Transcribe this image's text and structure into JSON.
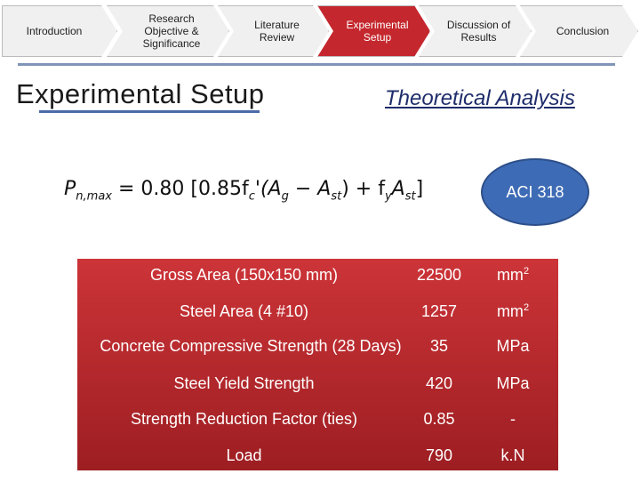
{
  "nav": {
    "items": [
      {
        "label": "Introduction",
        "active": false
      },
      {
        "label": "Research Objective & Significance",
        "active": false
      },
      {
        "label": "Literature Review",
        "active": false
      },
      {
        "label": "Experimental Setup",
        "active": true
      },
      {
        "label": "Discussion of Results",
        "active": false
      },
      {
        "label": "Conclusion",
        "active": false
      }
    ]
  },
  "title": "Experimental Setup",
  "subtitle": "Theoretical Analysis",
  "formula": {
    "lhs": "P",
    "lhs_sub": "n,max",
    "eq": "= 0.80",
    "text": "[0.85f",
    "fc_sub": "c",
    "ag": "(A",
    "ag_sub": "g",
    "minus": " − A",
    "ast_sub": "st",
    "plus": ") + f",
    "fy_sub": "y",
    "a2": "A",
    "a2_sub": "st",
    "close": "]"
  },
  "code_badge": "ACI 318",
  "table": {
    "rows": [
      {
        "label": "Gross Area (150x150 mm)",
        "value": "22500",
        "unit": "mm",
        "unit_sup": "2"
      },
      {
        "label": "Steel Area (4 #10)",
        "value": "1257",
        "unit": "mm",
        "unit_sup": "2"
      },
      {
        "label": "Concrete Compressive Strength (28 Days)",
        "value": "35",
        "unit": "MPa",
        "unit_sup": ""
      },
      {
        "label": "Steel Yield Strength",
        "value": "420",
        "unit": "MPa",
        "unit_sup": ""
      },
      {
        "label": "Strength Reduction Factor (ties)",
        "value": "0.85",
        "unit": "-",
        "unit_sup": ""
      },
      {
        "label": "Load",
        "value": "790",
        "unit": "k.N",
        "unit_sup": ""
      }
    ]
  },
  "colors": {
    "active_tab": "#c4272d",
    "panel": "#b72a2e",
    "badge": "#3e6bb5",
    "subtitle": "#1f2d6b"
  }
}
